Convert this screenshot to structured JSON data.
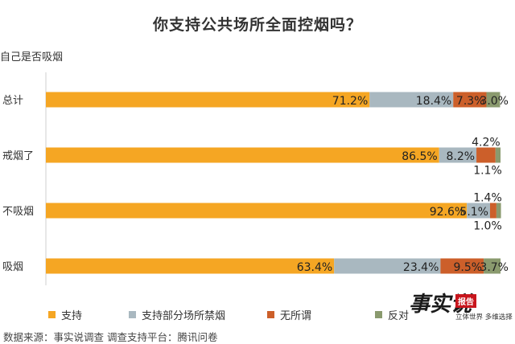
{
  "chart_data": {
    "type": "stacked-bar-horizontal",
    "title": "你支持公共场所全面控烟吗？",
    "ylabel": "自己是否吸烟",
    "categories": [
      "总计",
      "戒烟了",
      "不吸烟",
      "吸烟"
    ],
    "series": [
      {
        "name": "支持",
        "color": "#f5a623",
        "values": [
          71.2,
          86.5,
          92.6,
          63.4
        ],
        "labels": [
          "71.2%",
          "86.5%",
          "92.6%",
          "63.4%"
        ]
      },
      {
        "name": "支持部分场所禁烟",
        "color": "#a9b8c0",
        "values": [
          18.4,
          8.2,
          5.1,
          23.4
        ],
        "labels": [
          "18.4%",
          "8.2%",
          "5.1%",
          "23.4%"
        ]
      },
      {
        "name": "无所谓",
        "color": "#cc5f2a",
        "values": [
          7.3,
          4.2,
          1.4,
          9.5
        ],
        "labels": [
          "7.3%",
          "4.2%",
          "1.4%",
          "9.5%"
        ]
      },
      {
        "name": "反对",
        "color": "#8a9a6e",
        "values": [
          3.0,
          1.1,
          1.0,
          3.7
        ],
        "labels": [
          "3.0%",
          "1.1%",
          "1.0%",
          "3.7%"
        ]
      }
    ],
    "xlim": [
      0,
      100
    ],
    "legend_position": "bottom"
  },
  "source": "数据来源：事实说调查    调查支持平台：腾讯问卷",
  "logo": {
    "main": "事实说",
    "badge": "报告",
    "tagline": "立体世界 多维选择"
  }
}
